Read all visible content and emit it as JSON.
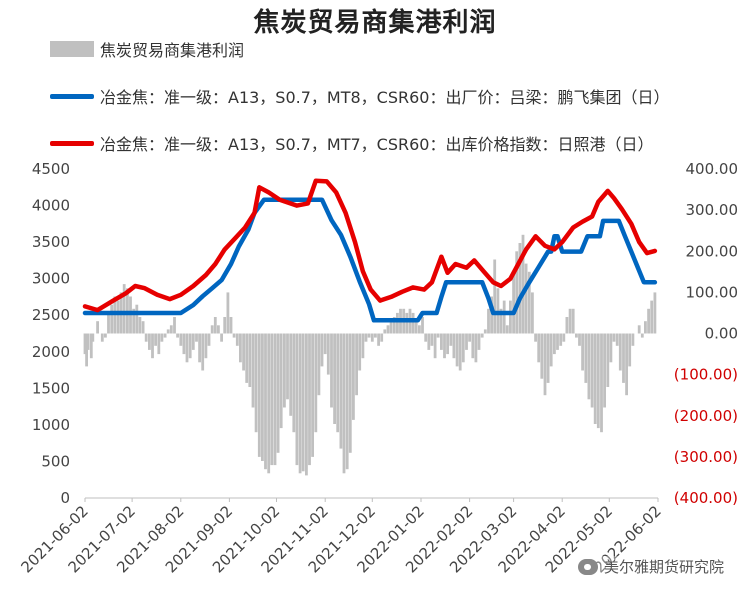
{
  "chart_data": {
    "type": "bar+line",
    "title": "焦炭贸易商集港利润",
    "legend": [
      {
        "name": "焦炭贸易商集港利润",
        "kind": "bar",
        "color": "#c0c0c0",
        "axis": "right"
      },
      {
        "name": "冶金焦：准一级：A13，S0.7，MT8，CSR60：出厂价：吕梁：鹏飞集团（日）",
        "kind": "line",
        "color": "#0066c0",
        "axis": "left"
      },
      {
        "name": "冶金焦：准一级：A13，S0.7，MT7，CSR60：出库价格指数：日照港（日）",
        "kind": "line",
        "color": "#e60000",
        "axis": "left"
      }
    ],
    "x_start": "2021-06-02",
    "x_end": "2022-06-02",
    "x_tick_labels": [
      "2021-06-02",
      "2021-07-02",
      "2021-08-02",
      "2021-09-02",
      "2021-10-02",
      "2021-11-02",
      "2021-12-02",
      "2022-01-02",
      "2022-02-02",
      "2022-03-02",
      "2022-04-02",
      "2022-05-02",
      "2022-06-02"
    ],
    "y_left": {
      "min": 0,
      "max": 4500,
      "ticks": [
        "0",
        "500",
        "1000",
        "1500",
        "2000",
        "2500",
        "3000",
        "3500",
        "4000",
        "4500"
      ]
    },
    "y_right": {
      "min": -400,
      "max": 400,
      "ticks": [
        "400.00",
        "300.00",
        "200.00",
        "100.00",
        "0.00",
        "(100.00)",
        "(200.00)",
        "(300.00)",
        "(400.00)"
      ]
    },
    "series_lvliang_pengfei": [
      [
        "2021-06-02",
        2530
      ],
      [
        "2021-08-02",
        2530
      ],
      [
        "2021-08-10",
        2640
      ],
      [
        "2021-08-16",
        2760
      ],
      [
        "2021-08-22",
        2870
      ],
      [
        "2021-08-28",
        2980
      ],
      [
        "2021-09-03",
        3200
      ],
      [
        "2021-09-08",
        3440
      ],
      [
        "2021-09-14",
        3670
      ],
      [
        "2021-09-18",
        3900
      ],
      [
        "2021-09-24",
        4080
      ],
      [
        "2021-10-31",
        4080
      ],
      [
        "2021-11-06",
        3800
      ],
      [
        "2021-11-12",
        3600
      ],
      [
        "2021-11-18",
        3300
      ],
      [
        "2021-11-24",
        2960
      ],
      [
        "2021-11-30",
        2650
      ],
      [
        "2021-12-03",
        2430
      ],
      [
        "2021-12-31",
        2430
      ],
      [
        "2022-01-03",
        2530
      ],
      [
        "2022-01-12",
        2530
      ],
      [
        "2022-01-15",
        2750
      ],
      [
        "2022-01-18",
        2950
      ],
      [
        "2022-02-10",
        2950
      ],
      [
        "2022-02-14",
        2730
      ],
      [
        "2022-02-17",
        2530
      ],
      [
        "2022-03-02",
        2530
      ],
      [
        "2022-03-06",
        2730
      ],
      [
        "2022-03-12",
        2950
      ],
      [
        "2022-03-18",
        3160
      ],
      [
        "2022-03-24",
        3370
      ],
      [
        "2022-03-26",
        3370
      ],
      [
        "2022-03-28",
        3580
      ],
      [
        "2022-03-30",
        3580
      ],
      [
        "2022-04-02",
        3370
      ],
      [
        "2022-04-14",
        3370
      ],
      [
        "2022-04-18",
        3580
      ],
      [
        "2022-04-26",
        3580
      ],
      [
        "2022-04-28",
        3790
      ],
      [
        "2022-05-08",
        3790
      ],
      [
        "2022-05-12",
        3580
      ],
      [
        "2022-05-16",
        3370
      ],
      [
        "2022-05-20",
        3160
      ],
      [
        "2022-05-24",
        2950
      ],
      [
        "2022-05-31",
        2950
      ]
    ],
    "series_rizhao_port": [
      [
        "2021-06-02",
        2620
      ],
      [
        "2021-06-10",
        2570
      ],
      [
        "2021-06-20",
        2700
      ],
      [
        "2021-06-28",
        2800
      ],
      [
        "2021-07-04",
        2900
      ],
      [
        "2021-07-10",
        2870
      ],
      [
        "2021-07-18",
        2780
      ],
      [
        "2021-07-26",
        2720
      ],
      [
        "2021-08-02",
        2780
      ],
      [
        "2021-08-10",
        2900
      ],
      [
        "2021-08-18",
        3050
      ],
      [
        "2021-08-24",
        3200
      ],
      [
        "2021-08-30",
        3400
      ],
      [
        "2021-09-06",
        3560
      ],
      [
        "2021-09-12",
        3700
      ],
      [
        "2021-09-18",
        3900
      ],
      [
        "2021-09-21",
        4250
      ],
      [
        "2021-09-27",
        4180
      ],
      [
        "2021-10-04",
        4080
      ],
      [
        "2021-10-15",
        4000
      ],
      [
        "2021-10-22",
        4030
      ],
      [
        "2021-10-27",
        4340
      ],
      [
        "2021-11-03",
        4330
      ],
      [
        "2021-11-09",
        4180
      ],
      [
        "2021-11-15",
        3900
      ],
      [
        "2021-11-21",
        3500
      ],
      [
        "2021-11-26",
        3100
      ],
      [
        "2021-12-01",
        2850
      ],
      [
        "2021-12-07",
        2700
      ],
      [
        "2021-12-14",
        2750
      ],
      [
        "2021-12-21",
        2820
      ],
      [
        "2021-12-28",
        2880
      ],
      [
        "2022-01-04",
        2850
      ],
      [
        "2022-01-09",
        2950
      ],
      [
        "2022-01-15",
        3300
      ],
      [
        "2022-01-19",
        3080
      ],
      [
        "2022-01-24",
        3200
      ],
      [
        "2022-01-31",
        3150
      ],
      [
        "2022-02-05",
        3250
      ],
      [
        "2022-02-11",
        3100
      ],
      [
        "2022-02-17",
        2950
      ],
      [
        "2022-02-22",
        2900
      ],
      [
        "2022-02-28",
        3000
      ],
      [
        "2022-03-05",
        3200
      ],
      [
        "2022-03-10",
        3400
      ],
      [
        "2022-03-16",
        3580
      ],
      [
        "2022-03-22",
        3450
      ],
      [
        "2022-03-28",
        3400
      ],
      [
        "2022-04-02",
        3500
      ],
      [
        "2022-04-09",
        3700
      ],
      [
        "2022-04-15",
        3780
      ],
      [
        "2022-04-21",
        3850
      ],
      [
        "2022-04-25",
        4050
      ],
      [
        "2022-05-01",
        4200
      ],
      [
        "2022-05-05",
        4100
      ],
      [
        "2022-05-10",
        3950
      ],
      [
        "2022-05-16",
        3750
      ],
      [
        "2022-05-21",
        3500
      ],
      [
        "2022-05-26",
        3350
      ],
      [
        "2022-05-31",
        3380
      ]
    ],
    "bars_profit": [
      [
        "2021-06-02",
        -50
      ],
      [
        "2021-06-03",
        -80
      ],
      [
        "2021-06-04",
        -40
      ],
      [
        "2021-06-06",
        -60
      ],
      [
        "2021-06-07",
        -20
      ],
      [
        "2021-06-10",
        30
      ],
      [
        "2021-06-13",
        -20
      ],
      [
        "2021-06-15",
        -10
      ],
      [
        "2021-06-17",
        50
      ],
      [
        "2021-06-19",
        70
      ],
      [
        "2021-06-21",
        90
      ],
      [
        "2021-06-23",
        80
      ],
      [
        "2021-06-25",
        100
      ],
      [
        "2021-06-27",
        120
      ],
      [
        "2021-06-29",
        110
      ],
      [
        "2021-07-01",
        90
      ],
      [
        "2021-07-03",
        60
      ],
      [
        "2021-07-05",
        70
      ],
      [
        "2021-07-07",
        40
      ],
      [
        "2021-07-09",
        30
      ],
      [
        "2021-07-11",
        -20
      ],
      [
        "2021-07-13",
        -40
      ],
      [
        "2021-07-15",
        -60
      ],
      [
        "2021-07-17",
        -30
      ],
      [
        "2021-07-19",
        -50
      ],
      [
        "2021-07-21",
        -20
      ],
      [
        "2021-07-23",
        -10
      ],
      [
        "2021-07-25",
        10
      ],
      [
        "2021-07-27",
        20
      ],
      [
        "2021-07-29",
        40
      ],
      [
        "2021-07-31",
        -10
      ],
      [
        "2021-08-02",
        -30
      ],
      [
        "2021-08-04",
        -50
      ],
      [
        "2021-08-06",
        -70
      ],
      [
        "2021-08-08",
        -60
      ],
      [
        "2021-08-10",
        -40
      ],
      [
        "2021-08-12",
        -20
      ],
      [
        "2021-08-14",
        -70
      ],
      [
        "2021-08-16",
        -90
      ],
      [
        "2021-08-18",
        -60
      ],
      [
        "2021-08-20",
        -30
      ],
      [
        "2021-08-22",
        20
      ],
      [
        "2021-08-24",
        40
      ],
      [
        "2021-08-26",
        20
      ],
      [
        "2021-08-28",
        -20
      ],
      [
        "2021-08-30",
        40
      ],
      [
        "2021-09-01",
        100
      ],
      [
        "2021-09-03",
        40
      ],
      [
        "2021-09-05",
        -10
      ],
      [
        "2021-09-07",
        -30
      ],
      [
        "2021-09-09",
        -70
      ],
      [
        "2021-09-11",
        -90
      ],
      [
        "2021-09-13",
        -120
      ],
      [
        "2021-09-15",
        -130
      ],
      [
        "2021-09-17",
        -180
      ],
      [
        "2021-09-19",
        -240
      ],
      [
        "2021-09-21",
        -300
      ],
      [
        "2021-09-23",
        -310
      ],
      [
        "2021-09-25",
        -330
      ],
      [
        "2021-09-27",
        -340
      ],
      [
        "2021-09-29",
        -320
      ],
      [
        "2021-10-01",
        -320
      ],
      [
        "2021-10-03",
        -290
      ],
      [
        "2021-10-05",
        -230
      ],
      [
        "2021-10-07",
        -180
      ],
      [
        "2021-10-09",
        -160
      ],
      [
        "2021-10-11",
        -200
      ],
      [
        "2021-10-13",
        -240
      ],
      [
        "2021-10-15",
        -320
      ],
      [
        "2021-10-17",
        -340
      ],
      [
        "2021-10-19",
        -335
      ],
      [
        "2021-10-21",
        -345
      ],
      [
        "2021-10-23",
        -320
      ],
      [
        "2021-10-25",
        -300
      ],
      [
        "2021-10-27",
        -240
      ],
      [
        "2021-10-29",
        -150
      ],
      [
        "2021-10-31",
        -80
      ],
      [
        "2021-11-02",
        -50
      ],
      [
        "2021-11-04",
        -100
      ],
      [
        "2021-11-06",
        -180
      ],
      [
        "2021-11-08",
        -220
      ],
      [
        "2021-11-10",
        -240
      ],
      [
        "2021-11-12",
        -280
      ],
      [
        "2021-11-14",
        -340
      ],
      [
        "2021-11-16",
        -330
      ],
      [
        "2021-11-18",
        -290
      ],
      [
        "2021-11-20",
        -210
      ],
      [
        "2021-11-22",
        -150
      ],
      [
        "2021-11-24",
        -90
      ],
      [
        "2021-11-26",
        -60
      ],
      [
        "2021-11-28",
        -20
      ],
      [
        "2021-11-30",
        -10
      ],
      [
        "2021-12-02",
        -20
      ],
      [
        "2021-12-04",
        -10
      ],
      [
        "2021-12-06",
        -30
      ],
      [
        "2021-12-08",
        -20
      ],
      [
        "2021-12-10",
        10
      ],
      [
        "2021-12-12",
        20
      ],
      [
        "2021-12-14",
        30
      ],
      [
        "2021-12-16",
        40
      ],
      [
        "2021-12-18",
        50
      ],
      [
        "2021-12-20",
        60
      ],
      [
        "2021-12-22",
        60
      ],
      [
        "2021-12-24",
        50
      ],
      [
        "2021-12-26",
        60
      ],
      [
        "2021-12-28",
        50
      ],
      [
        "2021-12-30",
        30
      ],
      [
        "2022-01-01",
        20
      ],
      [
        "2022-01-03",
        40
      ],
      [
        "2022-01-05",
        -20
      ],
      [
        "2022-01-07",
        -40
      ],
      [
        "2022-01-09",
        -30
      ],
      [
        "2022-01-11",
        -60
      ],
      [
        "2022-01-13",
        -10
      ],
      [
        "2022-01-15",
        -40
      ],
      [
        "2022-01-17",
        -60
      ],
      [
        "2022-01-19",
        -50
      ],
      [
        "2022-01-21",
        -30
      ],
      [
        "2022-01-23",
        -60
      ],
      [
        "2022-01-25",
        -80
      ],
      [
        "2022-01-27",
        -90
      ],
      [
        "2022-01-29",
        -70
      ],
      [
        "2022-01-31",
        -40
      ],
      [
        "2022-02-02",
        -20
      ],
      [
        "2022-02-04",
        -60
      ],
      [
        "2022-02-06",
        -70
      ],
      [
        "2022-02-08",
        -40
      ],
      [
        "2022-02-10",
        -10
      ],
      [
        "2022-02-12",
        10
      ],
      [
        "2022-02-14",
        60
      ],
      [
        "2022-02-16",
        90
      ],
      [
        "2022-02-18",
        180
      ],
      [
        "2022-02-20",
        110
      ],
      [
        "2022-02-22",
        60
      ],
      [
        "2022-02-24",
        80
      ],
      [
        "2022-02-26",
        20
      ],
      [
        "2022-02-28",
        80
      ],
      [
        "2022-03-02",
        150
      ],
      [
        "2022-03-04",
        200
      ],
      [
        "2022-03-06",
        220
      ],
      [
        "2022-03-08",
        240
      ],
      [
        "2022-03-10",
        170
      ],
      [
        "2022-03-12",
        150
      ],
      [
        "2022-03-14",
        100
      ],
      [
        "2022-03-16",
        -20
      ],
      [
        "2022-03-18",
        -70
      ],
      [
        "2022-03-20",
        -110
      ],
      [
        "2022-03-22",
        -150
      ],
      [
        "2022-03-24",
        -120
      ],
      [
        "2022-03-26",
        -80
      ],
      [
        "2022-03-28",
        -50
      ],
      [
        "2022-03-30",
        -40
      ],
      [
        "2022-04-01",
        -30
      ],
      [
        "2022-04-03",
        -20
      ],
      [
        "2022-04-05",
        40
      ],
      [
        "2022-04-07",
        60
      ],
      [
        "2022-04-09",
        60
      ],
      [
        "2022-04-11",
        -10
      ],
      [
        "2022-04-13",
        -30
      ],
      [
        "2022-04-15",
        -90
      ],
      [
        "2022-04-17",
        -120
      ],
      [
        "2022-04-19",
        -160
      ],
      [
        "2022-04-21",
        -180
      ],
      [
        "2022-04-23",
        -220
      ],
      [
        "2022-04-25",
        -230
      ],
      [
        "2022-04-27",
        -240
      ],
      [
        "2022-04-29",
        -180
      ],
      [
        "2022-05-01",
        -130
      ],
      [
        "2022-05-03",
        -70
      ],
      [
        "2022-05-05",
        -20
      ],
      [
        "2022-05-07",
        -30
      ],
      [
        "2022-05-09",
        -90
      ],
      [
        "2022-05-11",
        -120
      ],
      [
        "2022-05-13",
        -150
      ],
      [
        "2022-05-15",
        -80
      ],
      [
        "2022-05-17",
        -30
      ],
      [
        "2022-05-19",
        0
      ],
      [
        "2022-05-21",
        20
      ],
      [
        "2022-05-23",
        -10
      ],
      [
        "2022-05-25",
        30
      ],
      [
        "2022-05-27",
        60
      ],
      [
        "2022-05-29",
        80
      ],
      [
        "2022-05-31",
        100
      ]
    ],
    "grid": false
  },
  "watermark": {
    "text": "美尔雅期货研究院",
    "icon": "wechat-icon"
  }
}
